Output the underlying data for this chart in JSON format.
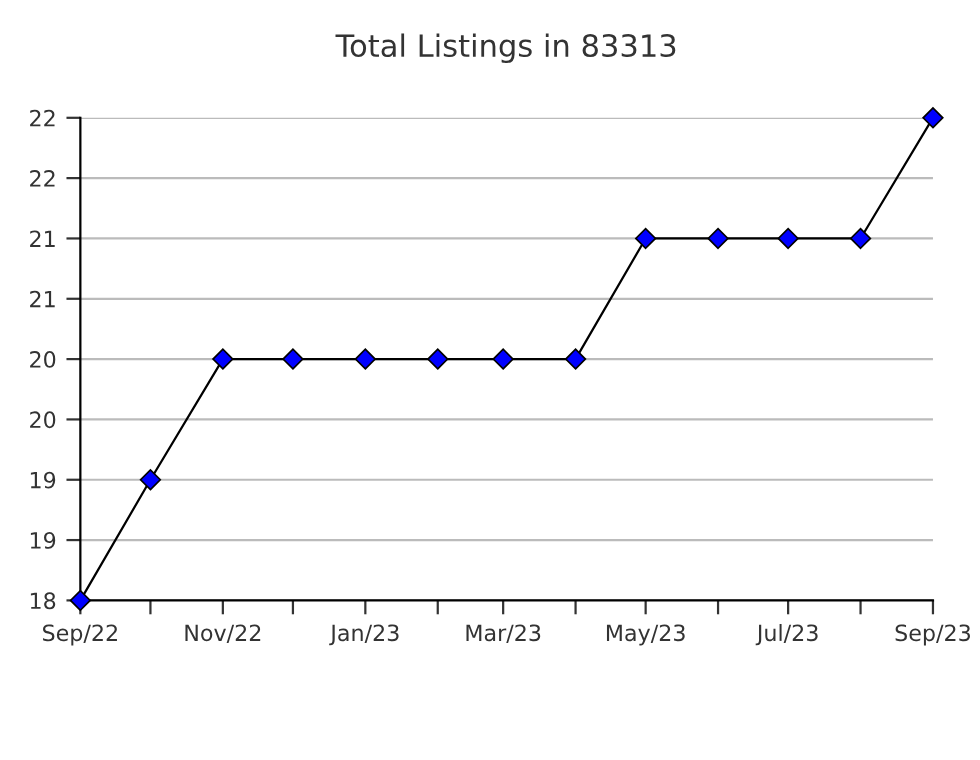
{
  "chart_data": {
    "type": "line",
    "title": "Total Listings in 83313",
    "x": [
      "2022-09",
      "2022-10",
      "2022-11",
      "2022-12",
      "2023-01",
      "2023-02",
      "2023-03",
      "2023-04",
      "2023-05",
      "2023-06",
      "2023-07",
      "2023-08",
      "2023-09"
    ],
    "series": [
      {
        "color": "#0000ff",
        "values": [
          18,
          19,
          20,
          20,
          20,
          20,
          20,
          20,
          21,
          21,
          21,
          21,
          22
        ]
      }
    ],
    "marker": "diamond",
    "line_style": "solid",
    "grid": "y",
    "xlim": [
      "2022-09",
      "2023-09"
    ],
    "xticks": [
      {
        "value": "2022-09",
        "label": "Sep/22"
      },
      {
        "value": "2022-10",
        "label": null
      },
      {
        "value": "2022-11",
        "label": "Nov/22"
      },
      {
        "value": "2022-12",
        "label": null
      },
      {
        "value": "2023-01",
        "label": "Jan/23"
      },
      {
        "value": "2023-02",
        "label": null
      },
      {
        "value": "2023-03",
        "label": "Mar/23"
      },
      {
        "value": "2023-04",
        "label": null
      },
      {
        "value": "2023-05",
        "label": "May/23"
      },
      {
        "value": "2023-06",
        "label": null
      },
      {
        "value": "2023-07",
        "label": "Jul/23"
      },
      {
        "value": "2023-08",
        "label": null
      },
      {
        "value": "2023-09",
        "label": "Sep/23"
      }
    ],
    "ylim": [
      18,
      22
    ],
    "yticks": [
      18,
      {
        "value": 18.5,
        "label": "19"
      },
      19,
      {
        "value": 19.5,
        "label": "20"
      },
      20,
      {
        "value": 20.5,
        "label": "21"
      },
      21,
      {
        "value": 21.5,
        "label": "22"
      },
      22
    ]
  }
}
